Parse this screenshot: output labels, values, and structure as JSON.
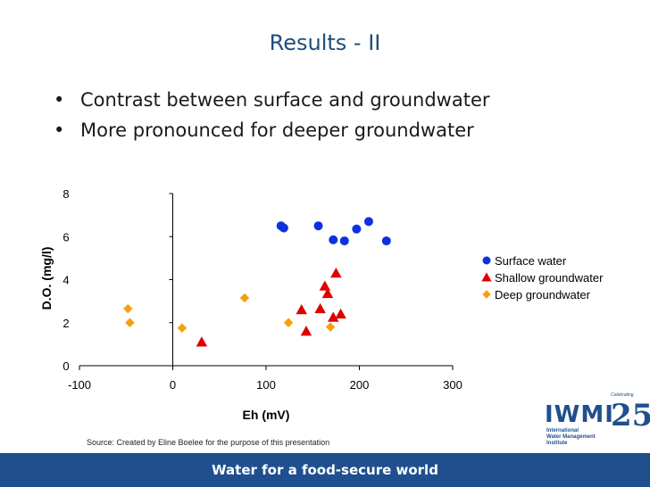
{
  "slide": {
    "title": "Results - II",
    "bullets": [
      "Contrast between surface and groundwater",
      "More pronounced for deeper groundwater"
    ],
    "source": "Source: Created by Eline Boelee for the purpose of this presentation",
    "footer": "Water for a food-secure world"
  },
  "logo": {
    "name": "IWMI",
    "subtitle_lines": [
      "International",
      "Water Management",
      "Institute"
    ],
    "anniversary": "25",
    "celebrating": "Celebrating"
  },
  "chart_data": {
    "type": "scatter",
    "xlabel": "Eh (mV)",
    "ylabel": "D.O. (mg/l)",
    "xlim": [
      -100,
      300
    ],
    "ylim": [
      0,
      8
    ],
    "xticks": [
      -100,
      0,
      100,
      200,
      300
    ],
    "yticks": [
      0,
      2,
      4,
      6,
      8
    ],
    "grid": false,
    "legend_position": "right",
    "series": [
      {
        "name": "Surface water",
        "marker": "circle",
        "color": "#0b32e0",
        "points": [
          [
            116,
            6.5
          ],
          [
            119,
            6.4
          ],
          [
            156,
            6.5
          ],
          [
            172,
            5.85
          ],
          [
            184,
            5.8
          ],
          [
            197,
            6.35
          ],
          [
            210,
            6.7
          ],
          [
            229,
            5.8
          ]
        ]
      },
      {
        "name": "Shallow groundwater",
        "marker": "triangle",
        "color": "#e00000",
        "points": [
          [
            31,
            1.1
          ],
          [
            138,
            2.6
          ],
          [
            143,
            1.6
          ],
          [
            158,
            2.65
          ],
          [
            163,
            3.7
          ],
          [
            166,
            3.35
          ],
          [
            172,
            2.25
          ],
          [
            175,
            4.3
          ],
          [
            180,
            2.4
          ]
        ]
      },
      {
        "name": "Deep groundwater",
        "marker": "diamond",
        "color": "#f5a00f",
        "points": [
          [
            -48,
            2.65
          ],
          [
            -46,
            2.0
          ],
          [
            10,
            1.75
          ],
          [
            77,
            3.15
          ],
          [
            124,
            2.0
          ],
          [
            169,
            1.8
          ]
        ]
      }
    ]
  }
}
